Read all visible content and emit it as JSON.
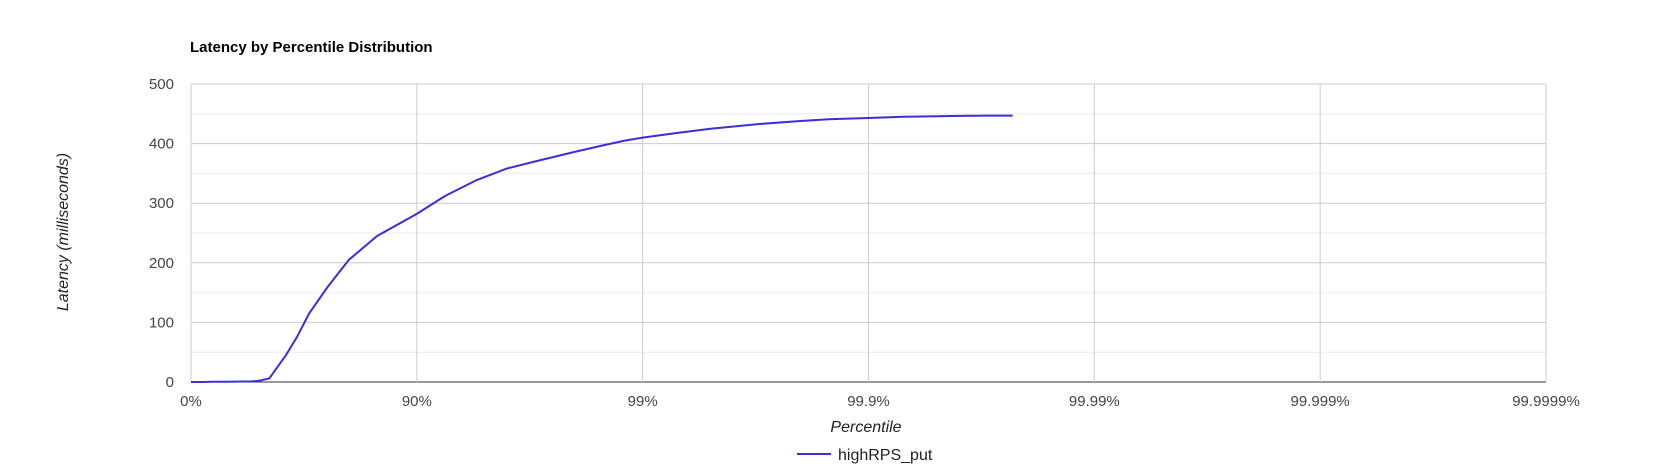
{
  "chart_data": {
    "type": "line",
    "title": "Latency by Percentile Distribution",
    "xlabel": "Percentile",
    "ylabel": "Latency (milliseconds)",
    "x_scale": "log-percentile",
    "x_ticks": [
      "0%",
      "90%",
      "99%",
      "99.9%",
      "99.99%",
      "99.999%",
      "99.9999%"
    ],
    "y_ticks": [
      "0",
      "100",
      "200",
      "300",
      "400",
      "500"
    ],
    "ylim": [
      0,
      500
    ],
    "grid": true,
    "legend_position": "bottom",
    "series": [
      {
        "name": "highRPS_put",
        "color": "#3b2fd6",
        "points": [
          {
            "x": 0,
            "y": 0
          },
          {
            "x": 10,
            "y": 0
          },
          {
            "x": 20,
            "y": 0.3
          },
          {
            "x": 30,
            "y": 0.5
          },
          {
            "x": 40,
            "y": 0.8
          },
          {
            "x": 46,
            "y": 1
          },
          {
            "x": 50,
            "y": 2
          },
          {
            "x": 55,
            "y": 6
          },
          {
            "x": 62,
            "y": 45
          },
          {
            "x": 66,
            "y": 75
          },
          {
            "x": 70,
            "y": 115
          },
          {
            "x": 75,
            "y": 158
          },
          {
            "x": 80,
            "y": 205
          },
          {
            "x": 85,
            "y": 245
          },
          {
            "x": 90,
            "y": 282
          },
          {
            "x": 92.5,
            "y": 312
          },
          {
            "x": 94.5,
            "y": 338
          },
          {
            "x": 96,
            "y": 358
          },
          {
            "x": 97,
            "y": 370
          },
          {
            "x": 98,
            "y": 386
          },
          {
            "x": 98.5,
            "y": 397
          },
          {
            "x": 98.8,
            "y": 405
          },
          {
            "x": 99,
            "y": 410
          },
          {
            "x": 99.3,
            "y": 418
          },
          {
            "x": 99.5,
            "y": 425
          },
          {
            "x": 99.7,
            "y": 433
          },
          {
            "x": 99.8,
            "y": 438
          },
          {
            "x": 99.85,
            "y": 441
          },
          {
            "x": 99.9,
            "y": 443
          },
          {
            "x": 99.93,
            "y": 445
          },
          {
            "x": 99.95,
            "y": 446
          },
          {
            "x": 99.96,
            "y": 446.5
          },
          {
            "x": 99.97,
            "y": 447
          },
          {
            "x": 99.977,
            "y": 447
          }
        ]
      }
    ]
  }
}
